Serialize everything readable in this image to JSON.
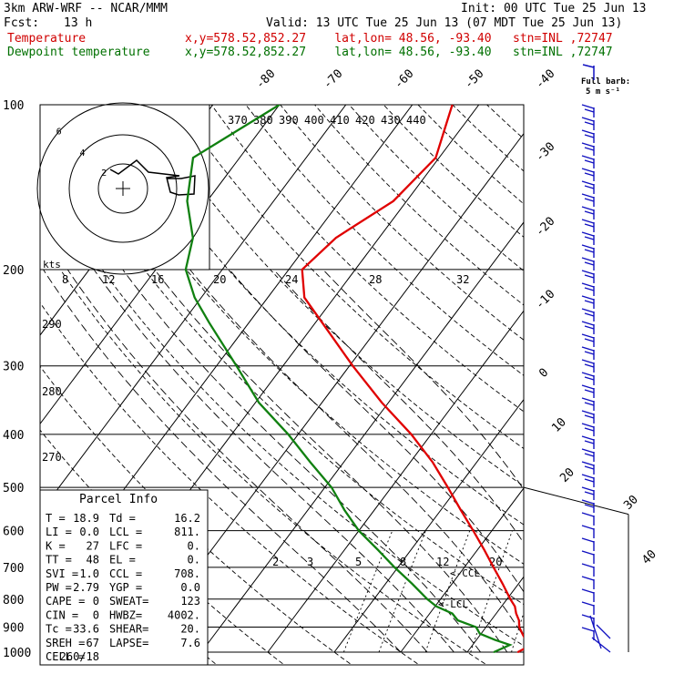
{
  "header": {
    "model": "3km ARW-WRF -- NCAR/MMM",
    "init": "Init: 00 UTC Tue 25 Jun 13",
    "fcst_label": "Fcst:",
    "fcst_value": "13 h",
    "valid": "Valid: 13 UTC Tue 25 Jun 13 (07 MDT Tue 25 Jun 13)",
    "temp_label": "Temperature",
    "temp_loc": "x,y=578.52,852.27    lat,lon= 48.56, -93.40   stn=INL ,72747",
    "dew_label": "Dewpoint temperature",
    "dew_loc": "x,y=578.52,852.27    lat,lon= 48.56, -93.40   stn=INL ,72747"
  },
  "colors": {
    "temperature": "#e00000",
    "dewpoint": "#108010",
    "grid": "#000000"
  },
  "wind_legend": {
    "title": "Full barb:",
    "value": "5 m s⁻¹"
  },
  "hodograph": {
    "units": "kts",
    "ring_labels": [
      "2",
      "4",
      "6"
    ]
  },
  "parcel_info": {
    "title": "Parcel Info",
    "rows": [
      [
        "T  =",
        "18.9",
        "Td =",
        "16.2"
      ],
      [
        "LI =",
        "0.0",
        "LCL =",
        "811."
      ],
      [
        "K  =",
        "27",
        "LFC =",
        "0."
      ],
      [
        "TT =",
        "48",
        "EL  =",
        "0."
      ],
      [
        "SVI =",
        "1.0",
        "CCL =",
        "708."
      ],
      [
        "PW =",
        "2.79",
        "YGP =",
        "0.0"
      ],
      [
        "CAPE =",
        "0",
        "SWEAT=",
        "123"
      ],
      [
        "CIN =",
        "0",
        "HWBZ=",
        "4002."
      ],
      [
        "Tc =",
        "33.6",
        "SHEAR=",
        "20."
      ],
      [
        "SREH =",
        "67",
        "LAPSE=",
        "7.6"
      ],
      [
        "CELL =",
        "260/18",
        "",
        ""
      ]
    ]
  },
  "chart_data": {
    "type": "line",
    "title": "",
    "xlabel": "",
    "ylabel": "",
    "y_scale": "log-pressure",
    "ylim": [
      1000,
      100
    ],
    "pressure_ticks": [
      100,
      200,
      300,
      400,
      500,
      600,
      700,
      800,
      900,
      1000
    ],
    "isotherm_labels": [
      -80,
      -70,
      -60,
      -50,
      -40,
      -30,
      -20,
      -10,
      0,
      10,
      20,
      30,
      40
    ],
    "theta_e_labels": [
      370,
      380,
      390,
      400,
      410,
      420,
      430,
      440
    ],
    "dry_adiabat_labels": [
      290,
      280,
      270
    ],
    "mixing_ratio_labels_upper": [
      8,
      12,
      16,
      20,
      24,
      28,
      32
    ],
    "mixing_ratio_labels_lower": [
      2,
      3,
      5,
      8,
      12,
      20
    ],
    "annotations": [
      "CCL",
      "LCL"
    ],
    "series": [
      {
        "name": "Temperature",
        "pressure": [
          1000,
          985,
          970,
          950,
          925,
          900,
          875,
          850,
          825,
          800,
          750,
          700,
          650,
          600,
          550,
          500,
          450,
          400,
          350,
          300,
          250,
          225,
          200,
          175,
          150,
          125,
          110,
          100
        ],
        "temp_c": [
          17.6,
          18.2,
          18.5,
          17.4,
          16.2,
          15.0,
          14.2,
          13.0,
          12.0,
          10.5,
          7.6,
          4.4,
          1.0,
          -2.8,
          -7.0,
          -11.5,
          -16.6,
          -23.0,
          -31.0,
          -39.5,
          -49.0,
          -54.5,
          -58.0,
          -56.5,
          -52.0,
          -50.5,
          -52.5,
          -54.0
        ]
      },
      {
        "name": "Dewpoint temperature",
        "pressure": [
          1000,
          985,
          970,
          950,
          925,
          900,
          875,
          850,
          825,
          800,
          750,
          700,
          650,
          600,
          550,
          500,
          450,
          400,
          350,
          300,
          250,
          225,
          200,
          175,
          150,
          125,
          110,
          100
        ],
        "temp_c": [
          14.0,
          14.8,
          15.6,
          12.8,
          9.8,
          8.5,
          5.0,
          3.4,
          0.2,
          -2.0,
          -6.0,
          -10.5,
          -15.0,
          -20.0,
          -24.5,
          -29.0,
          -35.0,
          -41.5,
          -49.5,
          -57.0,
          -66.0,
          -71.0,
          -75.5,
          -78.0,
          -83.0,
          -87.0,
          -83.0,
          -80.0
        ]
      }
    ]
  }
}
